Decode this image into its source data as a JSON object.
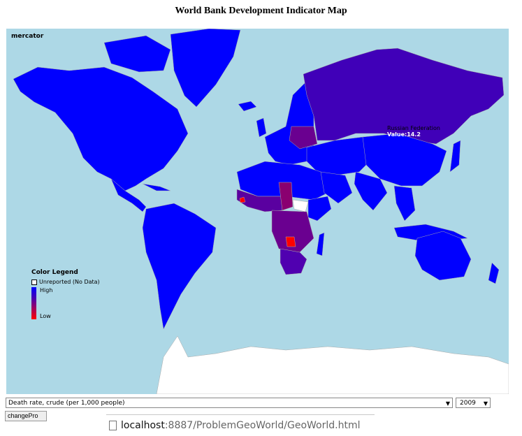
{
  "title": "World Bank Development Indicator Map",
  "map": {
    "projection": "mercator",
    "ocean_color": "#add8e6",
    "unreported_color": "#ffffff",
    "high_color": "#0000ff",
    "low_color": "#ff0000"
  },
  "legend": {
    "title": "Color Legend",
    "unreported": "Unreported (No Data)",
    "high": "High",
    "low": "Low"
  },
  "tooltip": {
    "country": "Russian Federation",
    "value": "Value:14.2"
  },
  "controls": {
    "indicator": "Death rate, crude (per 1,000 people)",
    "year": "2009",
    "button_label": "changePro"
  },
  "url": {
    "host": "localhost",
    "path": ":8887/ProblemGeoWorld/GeoWorld.html"
  }
}
